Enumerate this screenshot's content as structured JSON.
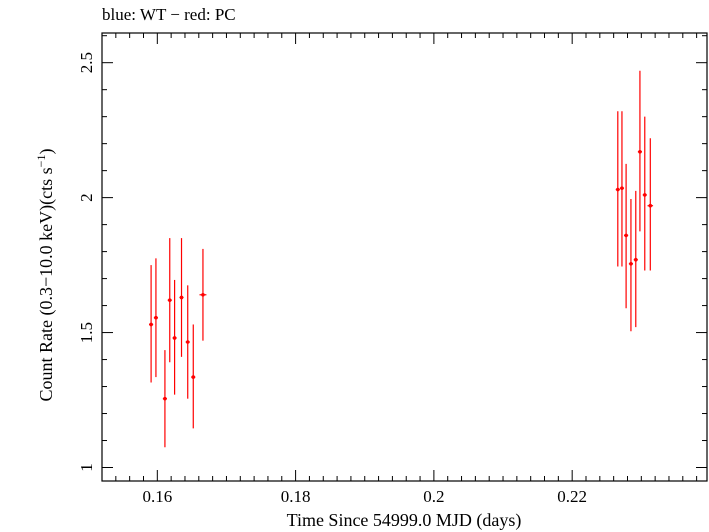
{
  "chart_data": {
    "type": "scatter",
    "title": "blue: WT − red: PC",
    "xlabel": "Time Since 54999.0 MJD (days)",
    "ylabel_main": "Count Rate (0.3−10.0 keV)(cts s",
    "ylabel_sup": "−1",
    "ylabel_end": ")",
    "xlim": [
      0.152,
      0.2395
    ],
    "ylim": [
      0.95,
      2.61
    ],
    "x_ticks": [
      {
        "value": 0.16,
        "label": "0.16"
      },
      {
        "value": 0.18,
        "label": "0.18"
      },
      {
        "value": 0.2,
        "label": "0.2"
      },
      {
        "value": 0.22,
        "label": "0.22"
      }
    ],
    "x_minor_step": 0.002,
    "y_ticks": [
      {
        "value": 1.0,
        "label": "1"
      },
      {
        "value": 1.5,
        "label": "1.5"
      },
      {
        "value": 2.0,
        "label": "2"
      },
      {
        "value": 2.5,
        "label": "2.5"
      }
    ],
    "y_minor_step": 0.1,
    "grid": false,
    "series": [
      {
        "color": "#ff0000",
        "points": [
          {
            "x": 0.1591,
            "y": 1.53,
            "xerr": 0.0003,
            "ylo": 1.315,
            "yhi": 1.75
          },
          {
            "x": 0.1598,
            "y": 1.555,
            "xerr": 0.0003,
            "ylo": 1.335,
            "yhi": 1.775
          },
          {
            "x": 0.1611,
            "y": 1.255,
            "xerr": 0.0003,
            "ylo": 1.075,
            "yhi": 1.435
          },
          {
            "x": 0.1618,
            "y": 1.62,
            "xerr": 0.0003,
            "ylo": 1.39,
            "yhi": 1.85
          },
          {
            "x": 0.1625,
            "y": 1.48,
            "xerr": 0.0003,
            "ylo": 1.27,
            "yhi": 1.695
          },
          {
            "x": 0.1635,
            "y": 1.63,
            "xerr": 0.0003,
            "ylo": 1.41,
            "yhi": 1.85
          },
          {
            "x": 0.1644,
            "y": 1.465,
            "xerr": 0.0003,
            "ylo": 1.255,
            "yhi": 1.675
          },
          {
            "x": 0.1652,
            "y": 1.335,
            "xerr": 0.0003,
            "ylo": 1.145,
            "yhi": 1.53
          },
          {
            "x": 0.1666,
            "y": 1.64,
            "xerr": 0.0005,
            "ylo": 1.47,
            "yhi": 1.81
          },
          {
            "x": 0.2266,
            "y": 2.03,
            "xerr": 0.0003,
            "ylo": 1.745,
            "yhi": 2.32
          },
          {
            "x": 0.2272,
            "y": 2.035,
            "xerr": 0.0003,
            "ylo": 1.745,
            "yhi": 2.32
          },
          {
            "x": 0.2278,
            "y": 1.86,
            "xerr": 0.0003,
            "ylo": 1.59,
            "yhi": 2.125
          },
          {
            "x": 0.2285,
            "y": 1.755,
            "xerr": 0.0003,
            "ylo": 1.505,
            "yhi": 1.995
          },
          {
            "x": 0.2292,
            "y": 1.77,
            "xerr": 0.0003,
            "ylo": 1.52,
            "yhi": 2.025
          },
          {
            "x": 0.2298,
            "y": 2.17,
            "xerr": 0.0003,
            "ylo": 1.875,
            "yhi": 2.47
          },
          {
            "x": 0.2305,
            "y": 2.01,
            "xerr": 0.0003,
            "ylo": 1.73,
            "yhi": 2.3
          },
          {
            "x": 0.2313,
            "y": 1.97,
            "xerr": 0.0004,
            "ylo": 1.73,
            "yhi": 2.22
          }
        ]
      }
    ]
  }
}
